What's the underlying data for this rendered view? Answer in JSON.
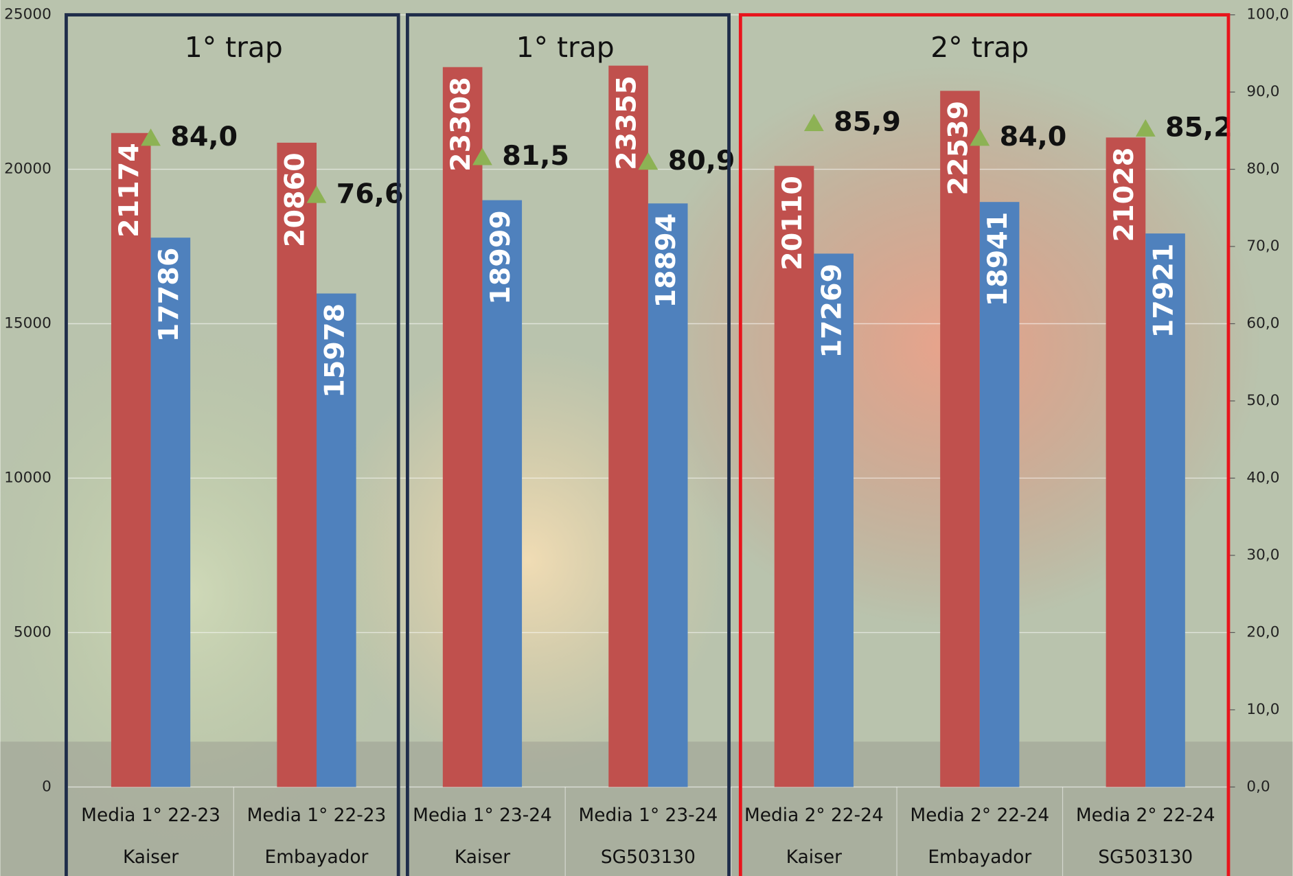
{
  "chart_data": {
    "type": "bar",
    "panels": [
      "1° trap",
      "1° trap",
      "2° trap"
    ],
    "categories": [
      "Media 1° 22-23",
      "Media 1° 22-23",
      "Media 1° 23-24",
      "Media 1° 23-24",
      "Media 2° 22-24",
      "Media 2° 22-24",
      "Media 2° 22-24"
    ],
    "varieties": [
      "Kaiser",
      "Embayador",
      "Kaiser",
      "SG503130",
      "Kaiser",
      "Embayador",
      "SG503130"
    ],
    "series": [
      {
        "color": "#c0504d",
        "values": [
          21174,
          20860,
          23308,
          23355,
          20110,
          22539,
          21028
        ]
      },
      {
        "color": "#4f81bd",
        "values": [
          17786,
          15978,
          18999,
          18894,
          17269,
          18941,
          17921
        ]
      },
      {
        "type": "scatter",
        "marker": "triangle",
        "color": "#8db254",
        "axis": "y2",
        "values": [
          84.0,
          76.6,
          81.5,
          80.9,
          85.9,
          84.0,
          85.2
        ],
        "value_labels": [
          "84,0",
          "76,6",
          "81,5",
          "80,9",
          "85,9",
          "84,0",
          "85,2"
        ]
      }
    ],
    "ylim": [
      0,
      25000
    ],
    "yticks": [
      0,
      5000,
      10000,
      15000,
      20000,
      25000
    ],
    "y2lim": [
      0,
      100
    ],
    "y2ticks": [
      {
        "value": 0,
        "label": "0,0"
      },
      {
        "value": 10,
        "label": "10,0"
      },
      {
        "value": 20,
        "label": "20,0"
      },
      {
        "value": 30,
        "label": "30,0"
      },
      {
        "value": 40,
        "label": "40,0"
      },
      {
        "value": 50,
        "label": "50,0"
      },
      {
        "value": 60,
        "label": "60,0"
      },
      {
        "value": 70,
        "label": "70,0"
      },
      {
        "value": 80,
        "label": "80,0"
      },
      {
        "value": 90,
        "label": "90,0"
      },
      {
        "value": 100,
        "label": "100,0"
      }
    ],
    "grid": true
  }
}
